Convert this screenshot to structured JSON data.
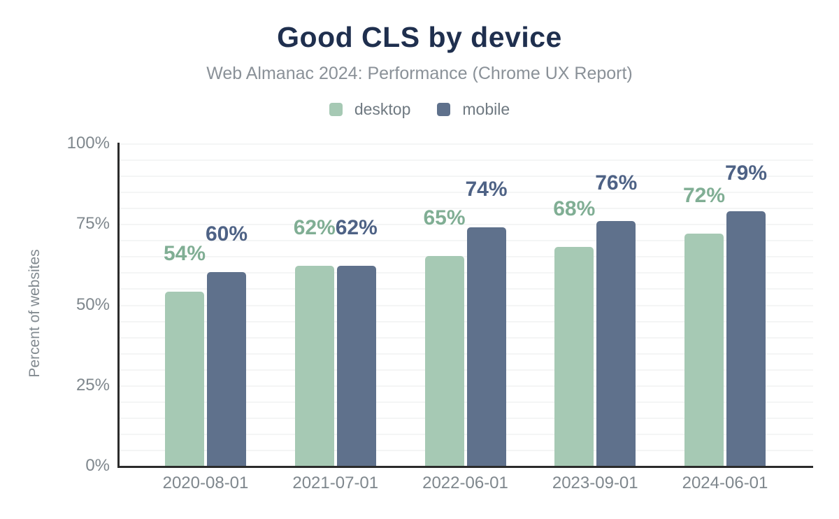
{
  "chart_data": {
    "type": "bar",
    "title": "Good CLS by device",
    "subtitle": "Web Almanac 2024: Performance (Chrome UX Report)",
    "ylabel": "Percent of websites",
    "xlabel": "",
    "ylim": [
      0,
      100
    ],
    "yticks": [
      0,
      25,
      50,
      75,
      100
    ],
    "ytick_suffix": "%",
    "grid_step": 5,
    "grid": "horizontal",
    "legend_position": "top-center",
    "value_label_suffix": "%",
    "categories": [
      "2020-08-01",
      "2021-07-01",
      "2022-06-01",
      "2023-09-01",
      "2024-06-01"
    ],
    "series": [
      {
        "name": "desktop",
        "values": [
          54,
          62,
          65,
          68,
          72
        ],
        "bar_color": "#a6c9b4",
        "label_color": "#80ae94"
      },
      {
        "name": "mobile",
        "values": [
          60,
          62,
          74,
          76,
          79
        ],
        "bar_color": "#5f718c",
        "label_color": "#4e6285"
      }
    ]
  },
  "colors": {
    "title": "#1f2f4e",
    "subtitle": "#8a9198",
    "axis_text": "#7f878d",
    "legend_text": "#6f7981",
    "axis_line": "#2b2b2b",
    "gridline": "#f4f5f5",
    "background": "#ffffff"
  }
}
